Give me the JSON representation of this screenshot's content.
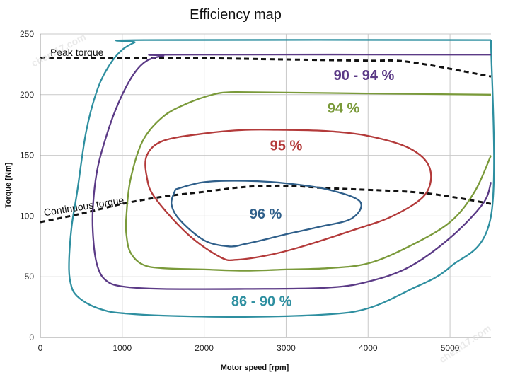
{
  "chart_data": {
    "type": "line",
    "title": "Efficiency map",
    "xlabel": "Motor speed [rpm]",
    "ylabel": "Torque [Nm]",
    "xlim": [
      0,
      5500
    ],
    "ylim": [
      0,
      250
    ],
    "xticks": [
      0,
      1000,
      2000,
      3000,
      4000,
      5000
    ],
    "yticks": [
      0,
      50,
      100,
      150,
      200,
      250
    ],
    "grid": true,
    "series": [
      {
        "name": "Peak torque",
        "style": "dashed",
        "color": "#111111",
        "label_at": [
          120,
          232
        ],
        "label_angle": 0,
        "points": [
          [
            0,
            230
          ],
          [
            1000,
            230
          ],
          [
            2000,
            230
          ],
          [
            3000,
            229
          ],
          [
            4000,
            228
          ],
          [
            4500,
            227
          ],
          [
            5500,
            215
          ]
        ]
      },
      {
        "name": "Continuous torque",
        "style": "dashed",
        "color": "#111111",
        "label_at": [
          50,
          100
        ],
        "label_angle": -9,
        "points": [
          [
            0,
            95
          ],
          [
            500,
            102
          ],
          [
            1000,
            110
          ],
          [
            1500,
            116
          ],
          [
            2000,
            120
          ],
          [
            2500,
            124
          ],
          [
            3000,
            125
          ],
          [
            3500,
            123
          ],
          [
            4500,
            120
          ],
          [
            5000,
            116
          ],
          [
            5500,
            110
          ]
        ]
      },
      {
        "name": "86 - 90 %",
        "color": "#2e8fa0",
        "label_at": [
          2700,
          26
        ],
        "points": [
          [
            5500,
            245
          ],
          [
            1270,
            245
          ],
          [
            1150,
            243
          ],
          [
            1000,
            237
          ],
          [
            850,
            225
          ],
          [
            700,
            205
          ],
          [
            560,
            170
          ],
          [
            450,
            120
          ],
          [
            380,
            90
          ],
          [
            350,
            58
          ],
          [
            380,
            42
          ],
          [
            450,
            34
          ],
          [
            600,
            27
          ],
          [
            800,
            22
          ],
          [
            1000,
            20
          ],
          [
            1500,
            18
          ],
          [
            2500,
            17
          ],
          [
            3500,
            19
          ],
          [
            4000,
            24
          ],
          [
            4500,
            39
          ],
          [
            5000,
            58
          ],
          [
            5500,
            100
          ],
          [
            5500,
            245
          ]
        ]
      },
      {
        "name": "90 - 94 %",
        "color": "#5b3a86",
        "label_at": [
          3950,
          212
        ],
        "points": [
          [
            5500,
            233
          ],
          [
            1650,
            233
          ],
          [
            1500,
            232
          ],
          [
            1300,
            228
          ],
          [
            1150,
            218
          ],
          [
            1000,
            200
          ],
          [
            850,
            175
          ],
          [
            700,
            140
          ],
          [
            640,
            105
          ],
          [
            650,
            78
          ],
          [
            700,
            58
          ],
          [
            800,
            47
          ],
          [
            1000,
            42
          ],
          [
            1500,
            40
          ],
          [
            2500,
            40
          ],
          [
            3500,
            41
          ],
          [
            4000,
            46
          ],
          [
            4500,
            58
          ],
          [
            5000,
            82
          ],
          [
            5400,
            110
          ],
          [
            5500,
            128
          ]
        ]
      },
      {
        "name": "94 %",
        "color": "#7a9a3a",
        "label_at": [
          3700,
          185
        ],
        "points": [
          [
            5500,
            200
          ],
          [
            4000,
            201
          ],
          [
            2600,
            202
          ],
          [
            2300,
            202
          ],
          [
            2100,
            200
          ],
          [
            1800,
            193
          ],
          [
            1500,
            182
          ],
          [
            1250,
            162
          ],
          [
            1100,
            130
          ],
          [
            1050,
            100
          ],
          [
            1050,
            85
          ],
          [
            1100,
            70
          ],
          [
            1250,
            60
          ],
          [
            1500,
            57
          ],
          [
            2000,
            56
          ],
          [
            2500,
            55
          ],
          [
            3000,
            56
          ],
          [
            3500,
            57
          ],
          [
            4000,
            61
          ],
          [
            4500,
            75
          ],
          [
            5000,
            95
          ],
          [
            5300,
            120
          ],
          [
            5500,
            150
          ]
        ]
      },
      {
        "name": "95 %",
        "color": "#b33a3a",
        "label_at": [
          3000,
          154
        ],
        "points": [
          [
            3000,
            171
          ],
          [
            3500,
            170
          ],
          [
            4000,
            166
          ],
          [
            4500,
            156
          ],
          [
            4750,
            140
          ],
          [
            4700,
            118
          ],
          [
            4300,
            100
          ],
          [
            3800,
            88
          ],
          [
            3200,
            75
          ],
          [
            2800,
            68
          ],
          [
            2400,
            64
          ],
          [
            2200,
            66
          ],
          [
            1800,
            85
          ],
          [
            1400,
            115
          ],
          [
            1300,
            132
          ],
          [
            1300,
            150
          ],
          [
            1500,
            162
          ],
          [
            2000,
            168
          ],
          [
            2500,
            171
          ],
          [
            3000,
            171
          ]
        ]
      },
      {
        "name": "96 %",
        "color": "#2f5f8a",
        "label_at": [
          2750,
          98
        ],
        "points": [
          [
            1650,
            122
          ],
          [
            2000,
            128
          ],
          [
            2500,
            129
          ],
          [
            3000,
            127
          ],
          [
            3500,
            122
          ],
          [
            3900,
            112
          ],
          [
            3800,
            98
          ],
          [
            3400,
            91
          ],
          [
            3000,
            85
          ],
          [
            2700,
            80
          ],
          [
            2500,
            77
          ],
          [
            2300,
            75
          ],
          [
            2000,
            80
          ],
          [
            1700,
            97
          ],
          [
            1600,
            110
          ],
          [
            1650,
            122
          ]
        ]
      }
    ],
    "watermark": "chem17.com"
  }
}
